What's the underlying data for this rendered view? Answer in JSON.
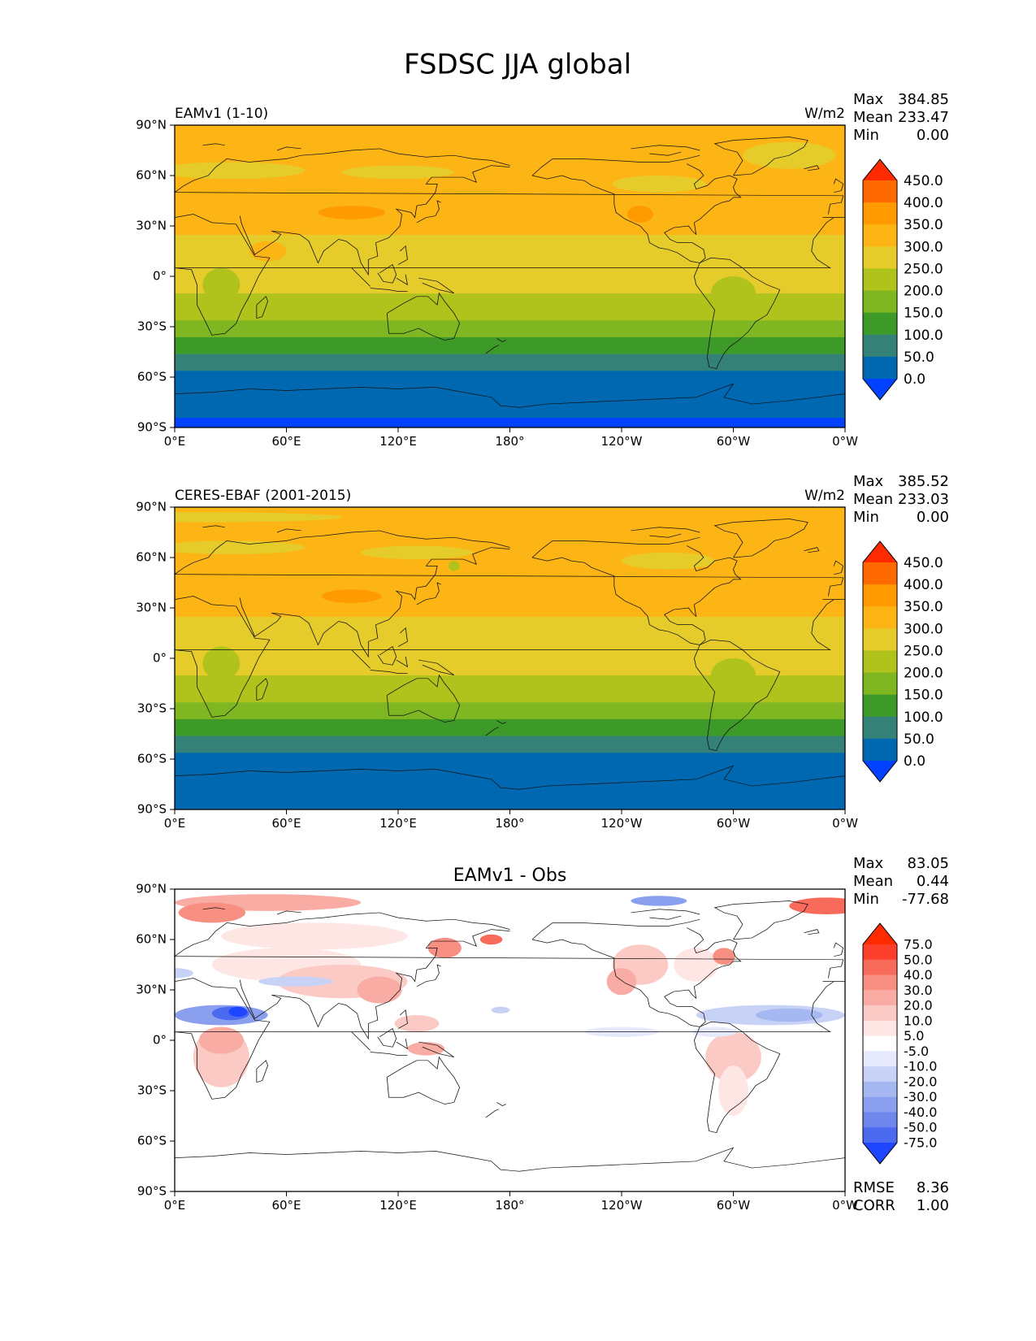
{
  "figure": {
    "title": "FSDSC JJA global"
  },
  "axes": {
    "lon_ticks": [
      "0°E",
      "60°E",
      "120°E",
      "180°",
      "120°W",
      "60°W",
      "0°W"
    ],
    "lat_ticks": [
      "90°N",
      "60°N",
      "30°N",
      "0°",
      "30°S",
      "60°S",
      "90°S"
    ]
  },
  "panels": [
    {
      "id": "model",
      "left_label": "EAMv1 (1-10)",
      "center_label": "",
      "units": "W/m2",
      "stats": [
        {
          "label": "Max",
          "value": "384.85"
        },
        {
          "label": "Mean",
          "value": "233.47"
        },
        {
          "label": "Min",
          "value": "0.00"
        }
      ]
    },
    {
      "id": "obs",
      "left_label": "CERES-EBAF (2001-2015)",
      "center_label": "",
      "units": "W/m2",
      "stats": [
        {
          "label": "Max",
          "value": "385.52"
        },
        {
          "label": "Mean",
          "value": "233.03"
        },
        {
          "label": "Min",
          "value": "0.00"
        }
      ]
    },
    {
      "id": "diff",
      "left_label": "",
      "center_label": "EAMv1 - Obs",
      "units": "",
      "stats": [
        {
          "label": "Max",
          "value": "83.05"
        },
        {
          "label": "Mean",
          "value": "0.44"
        },
        {
          "label": "Min",
          "value": "-77.68"
        }
      ],
      "extra_stats": [
        {
          "label": "RMSE",
          "value": "8.36"
        },
        {
          "label": "CORR",
          "value": "1.00"
        }
      ]
    }
  ],
  "colorbars": {
    "abs": {
      "labels": [
        "450.0",
        "400.0",
        "350.0",
        "300.0",
        "250.0",
        "200.0",
        "150.0",
        "100.0",
        "50.0",
        "0.0"
      ],
      "colors_top_to_bottom": [
        "#ff2a00",
        "#ff6a00",
        "#ff9a00",
        "#fdb515",
        "#e5cc2a",
        "#b0c31c",
        "#7fb722",
        "#3d9a28",
        "#348277",
        "#0068b0",
        "#0042ff"
      ]
    },
    "diff": {
      "labels": [
        "75.0",
        "50.0",
        "40.0",
        "30.0",
        "20.0",
        "10.0",
        "5.0",
        "-5.0",
        "-10.0",
        "-20.0",
        "-30.0",
        "-40.0",
        "-50.0",
        "-75.0"
      ],
      "colors_top_to_bottom": [
        "#ff2a00",
        "#fc3f2a",
        "#f86a5a",
        "#f88f83",
        "#f9aca4",
        "#fbcac5",
        "#fde6e3",
        "#ffffff",
        "#e5e9fb",
        "#c8d2f7",
        "#a6b8f2",
        "#8aa0ee",
        "#6f87ec",
        "#4c6af0",
        "#1e45ff"
      ]
    }
  },
  "chart_data": [
    {
      "type": "heatmap",
      "title": "EAMv1 (1-10)",
      "units": "W/m2",
      "x_range": [
        0,
        360
      ],
      "y_range": [
        -90,
        90
      ],
      "zonal_levels": [
        {
          "lat_range": [
            -90,
            -84
          ],
          "level": 0
        },
        {
          "lat_range": [
            -84,
            -56
          ],
          "level": 1
        },
        {
          "lat_range": [
            -56,
            -46
          ],
          "level": 2
        },
        {
          "lat_range": [
            -46,
            -36
          ],
          "level": 3
        },
        {
          "lat_range": [
            -36,
            -26
          ],
          "level": 4
        },
        {
          "lat_range": [
            -26,
            -10
          ],
          "level": 5
        },
        {
          "lat_range": [
            -10,
            25
          ],
          "level": 6
        },
        {
          "lat_range": [
            25,
            75
          ],
          "level": 7
        },
        {
          "lat_range": [
            75,
            90
          ],
          "level": 7
        }
      ],
      "stats": {
        "max": 384.85,
        "mean": 233.47,
        "min": 0.0
      }
    },
    {
      "type": "heatmap",
      "title": "CERES-EBAF (2001-2015)",
      "units": "W/m2",
      "x_range": [
        0,
        360
      ],
      "y_range": [
        -90,
        90
      ],
      "zonal_levels": [
        {
          "lat_range": [
            -90,
            -56
          ],
          "level": 1
        },
        {
          "lat_range": [
            -56,
            -46
          ],
          "level": 2
        },
        {
          "lat_range": [
            -46,
            -36
          ],
          "level": 3
        },
        {
          "lat_range": [
            -36,
            -26
          ],
          "level": 4
        },
        {
          "lat_range": [
            -26,
            -10
          ],
          "level": 5
        },
        {
          "lat_range": [
            -10,
            25
          ],
          "level": 6
        },
        {
          "lat_range": [
            25,
            90
          ],
          "level": 7
        }
      ],
      "stats": {
        "max": 385.52,
        "mean": 233.03,
        "min": 0.0
      }
    },
    {
      "type": "heatmap",
      "title": "EAMv1 - Obs",
      "units": "W/m2",
      "x_range": [
        0,
        360
      ],
      "y_range": [
        -90,
        90
      ],
      "stats": {
        "max": 83.05,
        "mean": 0.44,
        "min": -77.68,
        "rmse": 8.36,
        "corr": 1.0
      }
    }
  ]
}
